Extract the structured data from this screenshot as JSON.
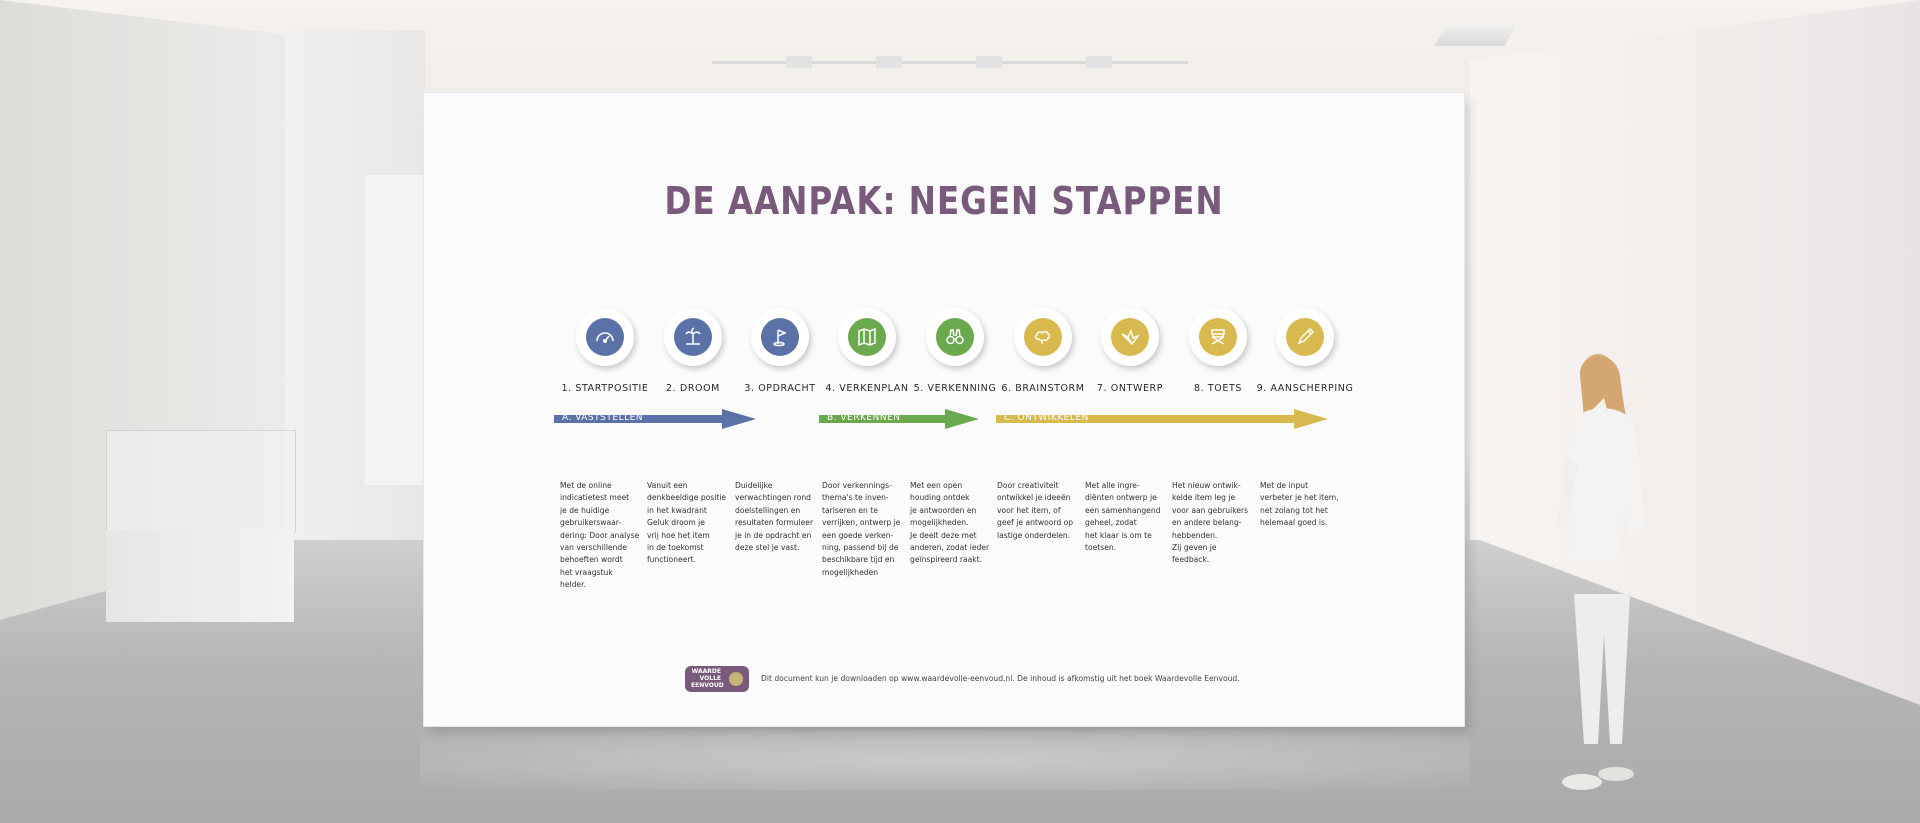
{
  "poster": {
    "title": "DE AANPAK: NEGEN STAPPEN",
    "steps": [
      {
        "label": "1. STARTPOSITIE",
        "icon": "speedometer-icon",
        "color": "#5b72a8"
      },
      {
        "label": "2. DROOM",
        "icon": "palm-island-icon",
        "color": "#5b72a8"
      },
      {
        "label": "3. OPDRACHT",
        "icon": "flag-icon",
        "color": "#5b72a8"
      },
      {
        "label": "4. VERKENPLAN",
        "icon": "map-icon",
        "color": "#6ba94e"
      },
      {
        "label": "5. VERKENNING",
        "icon": "binoculars-icon",
        "color": "#6ba94e"
      },
      {
        "label": "6. BRAINSTORM",
        "icon": "brain-icon",
        "color": "#d8b94e"
      },
      {
        "label": "7. ONTWERP",
        "icon": "origami-bird-icon",
        "color": "#d8b94e"
      },
      {
        "label": "8. TOETS",
        "icon": "directors-chair-icon",
        "color": "#d8b94e"
      },
      {
        "label": "9. AANSCHERPING",
        "icon": "pencil-icon",
        "color": "#d8b94e"
      }
    ],
    "phases": [
      {
        "label": "A. VASTSTELLEN",
        "color": "#5b72a8"
      },
      {
        "label": "B. VERKENNEN",
        "color": "#6ba94e"
      },
      {
        "label": "C. ONTWIKKELEN",
        "color": "#d8b94e"
      }
    ],
    "descriptions": [
      [
        "Met de online",
        "indicatietest meet",
        "je de huidige",
        "gebruikerswaar-",
        "dering: Door analyse",
        "van verschillende",
        "behoeften wordt",
        "het vraagstuk",
        "helder."
      ],
      [
        "Vanuit een",
        "denkbeeldige positie",
        "in het kwadrant",
        "Geluk droom je",
        "vrij hoe het item",
        "in de toekomst",
        "functioneert."
      ],
      [
        "Duidelijke",
        "verwachtingen rond",
        "doelstellingen en",
        "resultaten formuleer",
        "je in de opdracht en",
        "deze stel je vast."
      ],
      [
        "Door verkennings-",
        "thema's te inven-",
        "tariseren en te",
        "verrijken, ontwerp je",
        "een goede verken-",
        "ning, passend bij de",
        "beschikbare tijd en",
        "mogelijkheden"
      ],
      [
        "Met een open",
        "houding ontdek",
        "je antwoorden en",
        "mogelijkheden.",
        "Je deelt deze met",
        "anderen, zodat ieder",
        "geïnspireerd raakt."
      ],
      [
        "Door creativiteit",
        "ontwikkel je ideeën",
        "voor het item, of",
        "geef je antwoord op",
        "lastige onderdelen."
      ],
      [
        "Met alle ingre-",
        "diënten ontwerp je",
        "een samenhangend",
        "geheel, zodat",
        "het klaar is om te",
        "toetsen."
      ],
      [
        "Het nieuw ontwik-",
        "kelde item leg je",
        "voor aan gebruikers",
        "en andere belang-",
        "hebbenden.",
        "Zij geven je",
        "feedback."
      ],
      [
        "Met de input",
        "verbeter je het item,",
        "net zolang tot het",
        "helemaal goed is."
      ]
    ],
    "logo": {
      "line1": "WAARDE",
      "line2": "VOLLE",
      "line3": "EENVOUD",
      "color": "#7a5a7c"
    },
    "footer_text": "Dit document kun je downloaden op www.waardevolle-eenvoud.nl. De inhoud is afkomstig uit het boek Waardevolle Eenvoud."
  }
}
